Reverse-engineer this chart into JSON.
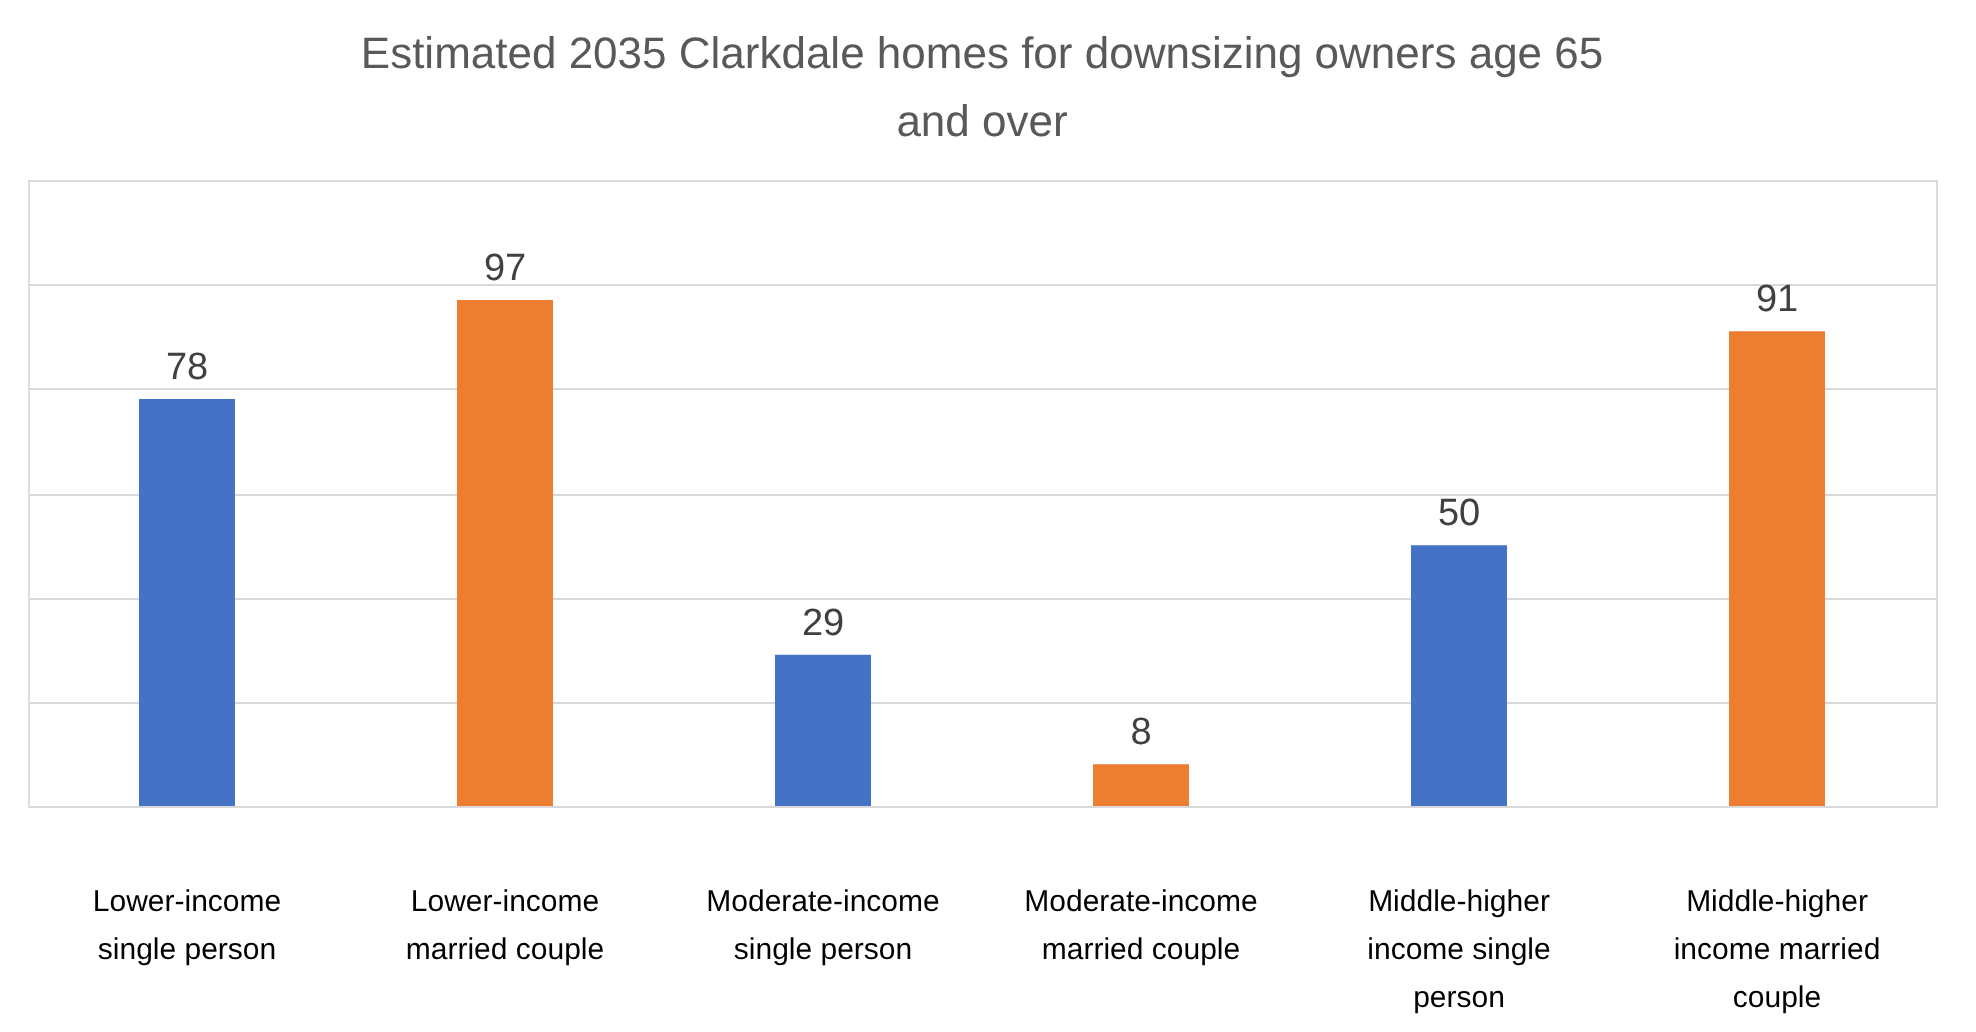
{
  "chart_data": {
    "type": "bar",
    "title": "Estimated 2035 Clarkdale homes for downsizing owners age 65 and over",
    "categories": [
      "Lower-income single person",
      "Lower-income married couple",
      "Moderate-income single person",
      "Moderate-income married couple",
      "Middle-higher income single person",
      "Middle-higher income married couple"
    ],
    "values": [
      78,
      97,
      29,
      8,
      50,
      91
    ],
    "colors": [
      "#4472c4",
      "#ed7d31",
      "#4472c4",
      "#ed7d31",
      "#4472c4",
      "#ed7d31"
    ],
    "ylim": [
      0,
      120
    ],
    "yticks": [
      {
        "value": 0,
        "label": null
      },
      {
        "value": 20,
        "label": null
      },
      {
        "value": 40,
        "label": null
      },
      {
        "value": 60,
        "label": null
      },
      {
        "value": 80,
        "label": null
      },
      {
        "value": 100,
        "label": null
      },
      {
        "value": 120,
        "label": null
      }
    ],
    "tick_labels": "x",
    "grid": "y",
    "data_labels": true
  }
}
